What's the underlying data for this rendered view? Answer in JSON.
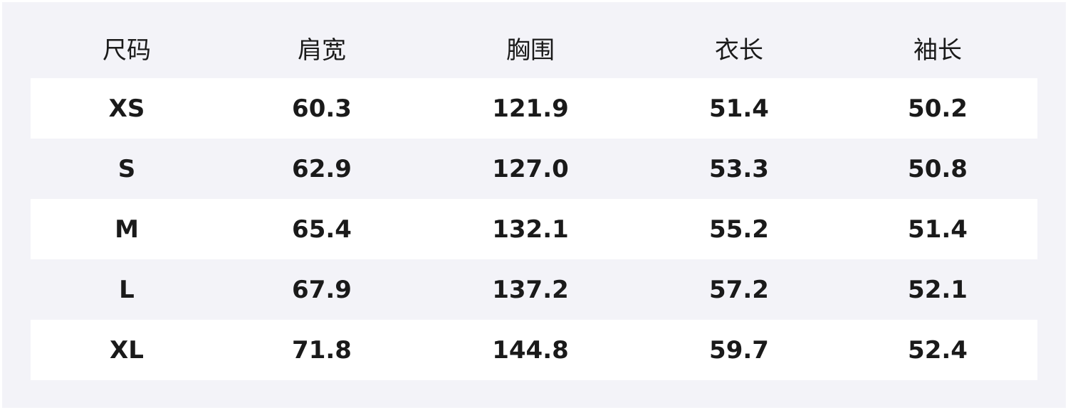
{
  "table": {
    "headers": [
      "尺码",
      "肩宽",
      "胸围",
      "衣长",
      "袖长"
    ],
    "rows": [
      [
        "XS",
        "60.3",
        "121.9",
        "51.4",
        "50.2"
      ],
      [
        "S",
        "62.9",
        "127.0",
        "53.3",
        "50.8"
      ],
      [
        "M",
        "65.4",
        "132.1",
        "55.2",
        "51.4"
      ],
      [
        "L",
        "67.9",
        "137.2",
        "57.2",
        "52.1"
      ],
      [
        "XL",
        "71.8",
        "144.8",
        "59.7",
        "52.4"
      ]
    ]
  }
}
